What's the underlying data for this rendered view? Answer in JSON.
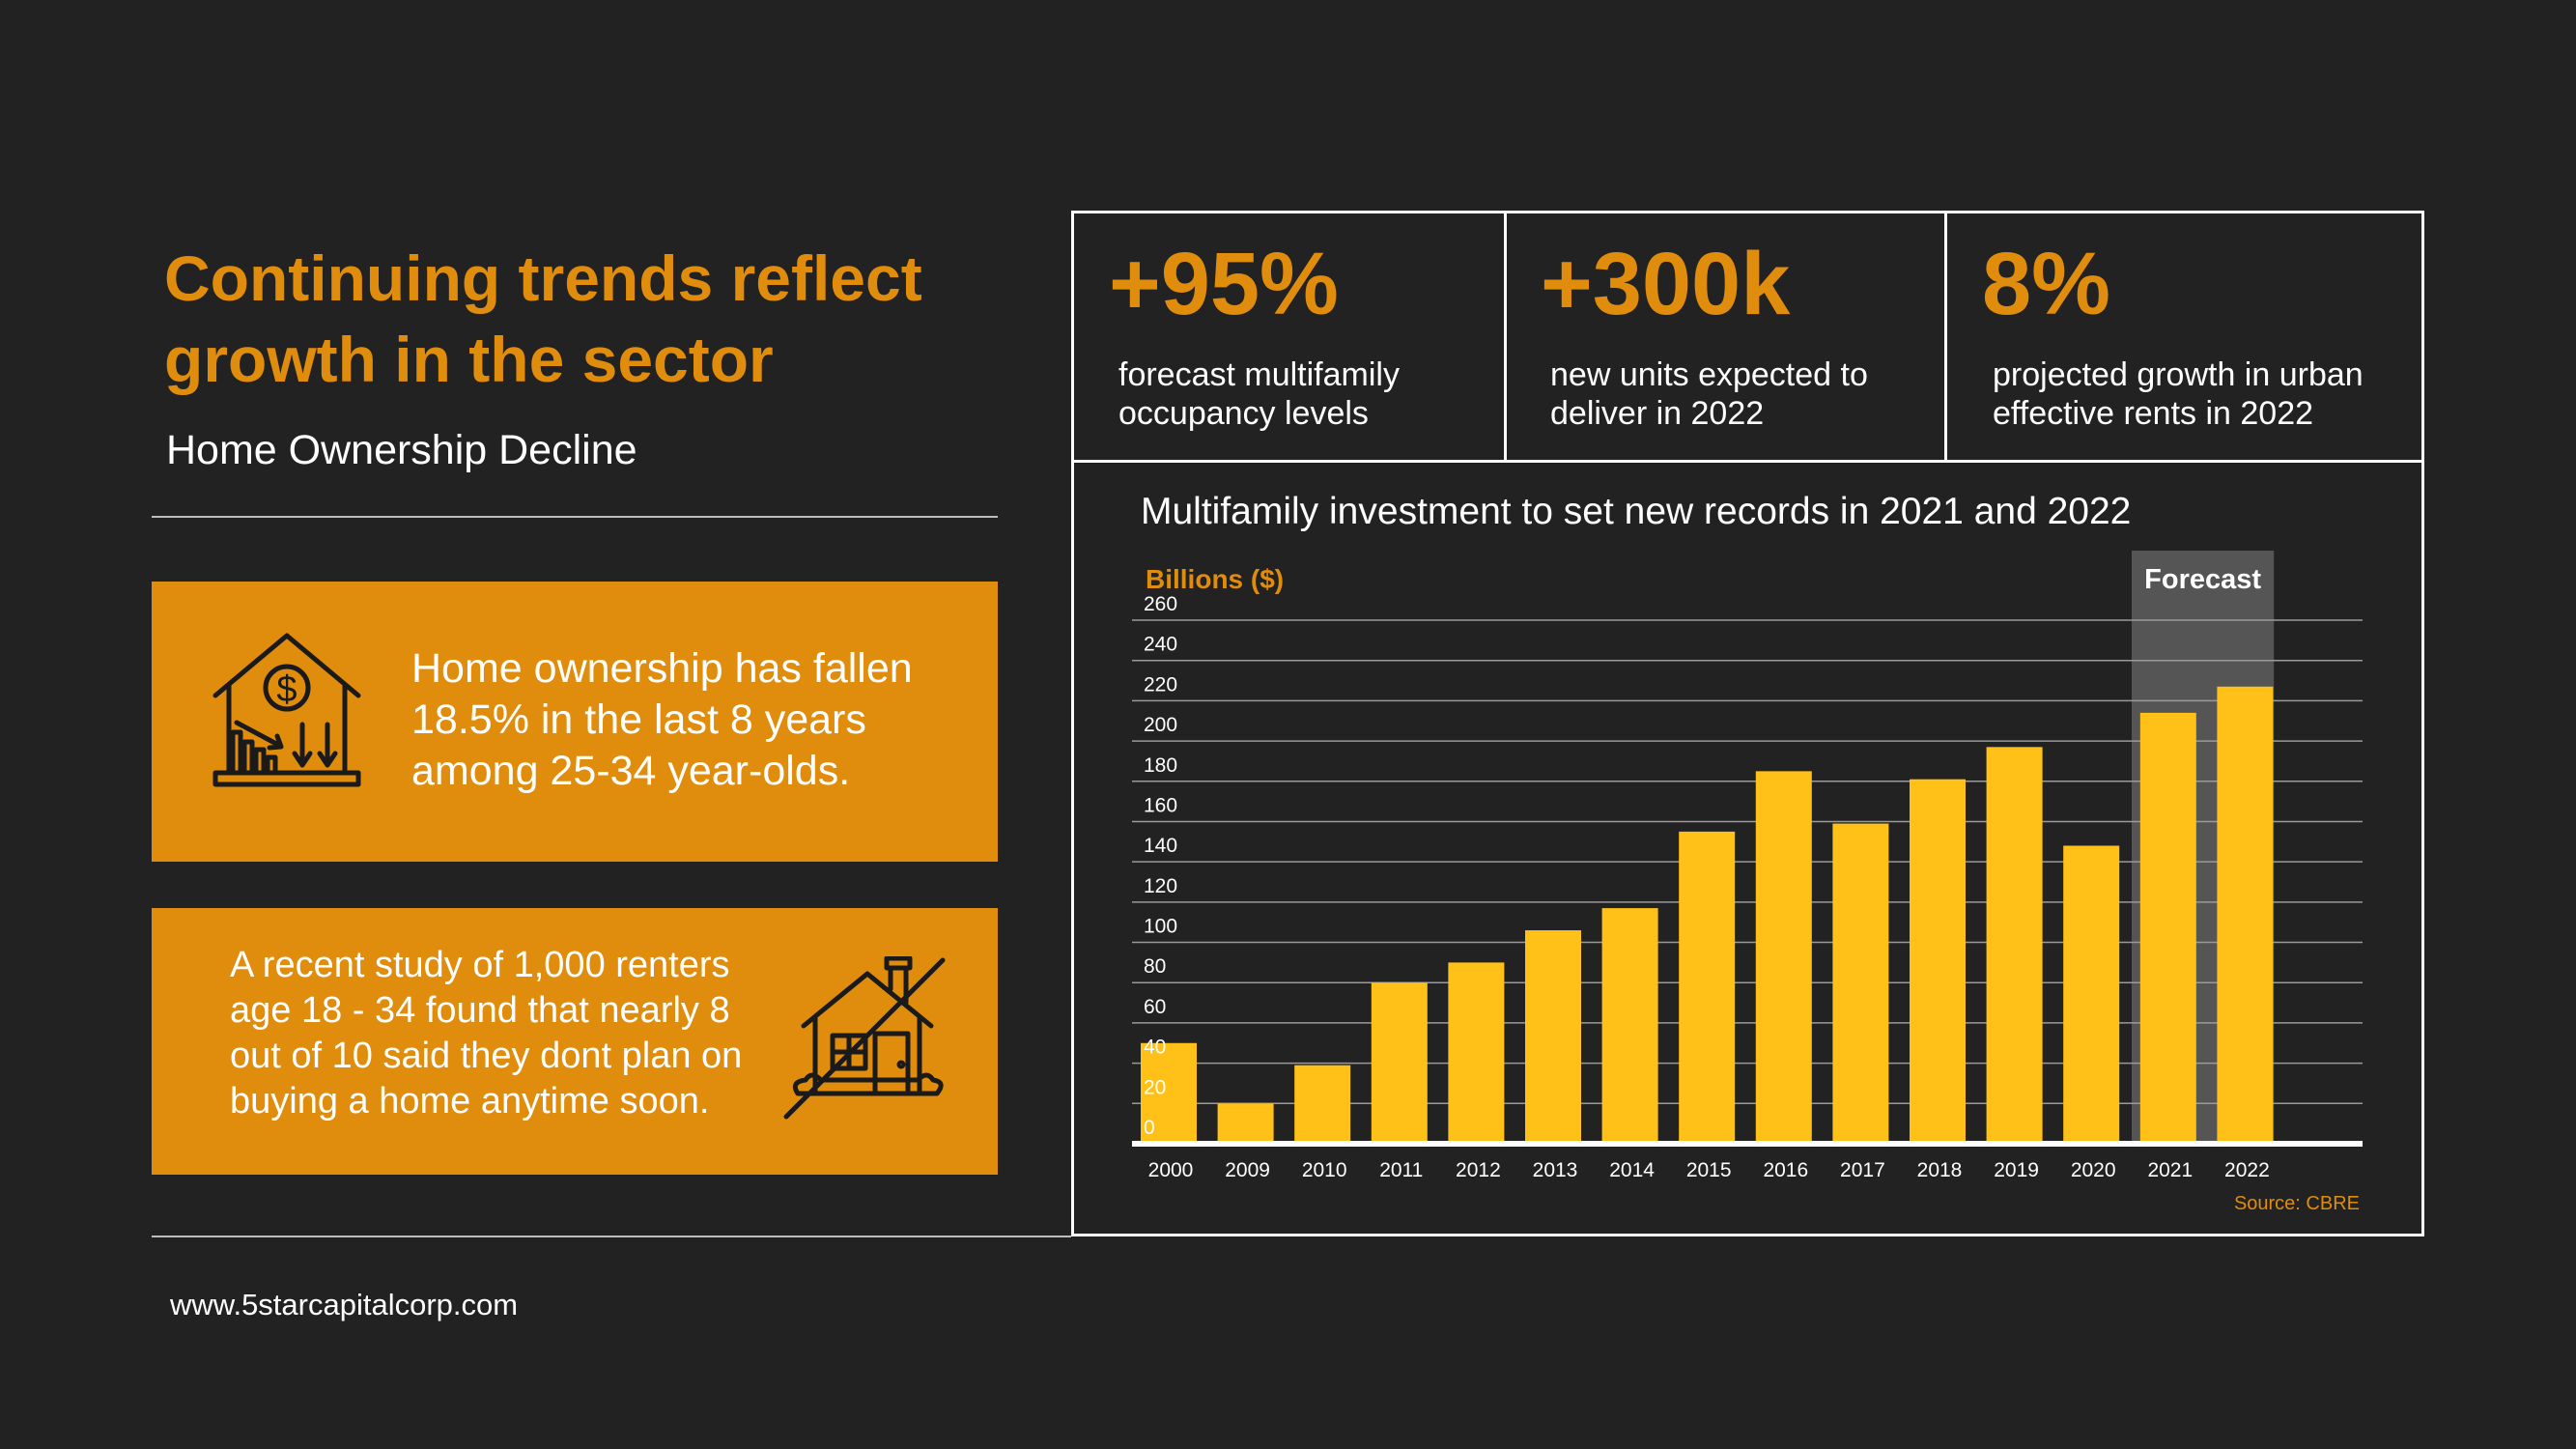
{
  "header": {
    "title": "Continuing trends reflect growth in the sector",
    "subtitle": "Home Ownership Decline"
  },
  "cards": [
    {
      "text": "Home ownership has fallen 18.5% in the last 8 years among 25-34 year-olds.",
      "icon": "house-price-decline-icon"
    },
    {
      "text": "A recent study of 1,000 renters age 18 - 34 found that nearly 8 out of 10 said they dont plan on buying a home anytime soon.",
      "icon": "no-house-icon"
    }
  ],
  "stats": [
    {
      "value": "+95%",
      "label": "forecast multifamily occupancy levels"
    },
    {
      "value": "+300k",
      "label": "new units expected to deliver in 2022"
    },
    {
      "value": "8%",
      "label": "projected growth in urban effective rents in 2022"
    }
  ],
  "colors": {
    "accent": "#E08C0C",
    "bar": "#FFC117",
    "background": "#222222",
    "forecast_band": "#555555"
  },
  "chart_data": {
    "type": "bar",
    "title": "Multifamily investment to set new records in 2021 and 2022",
    "ylabel": "Billions ($)",
    "ylim": [
      0,
      260
    ],
    "yticks": [
      0,
      20,
      40,
      60,
      80,
      100,
      120,
      140,
      160,
      180,
      200,
      220,
      240,
      260
    ],
    "categories": [
      "2000",
      "2009",
      "2010",
      "2011",
      "2012",
      "2013",
      "2014",
      "2015",
      "2016",
      "2017",
      "2018",
      "2019",
      "2020",
      "2021",
      "2022"
    ],
    "values": [
      50,
      20,
      39,
      80,
      90,
      106,
      117,
      155,
      185,
      159,
      181,
      197,
      148,
      214,
      227
    ],
    "grid": true,
    "forecast_label": "Forecast",
    "forecast_categories": [
      "2021",
      "2022"
    ],
    "source": "Source: CBRE"
  },
  "footer": {
    "website": "www.5starcapitalcorp.com"
  }
}
